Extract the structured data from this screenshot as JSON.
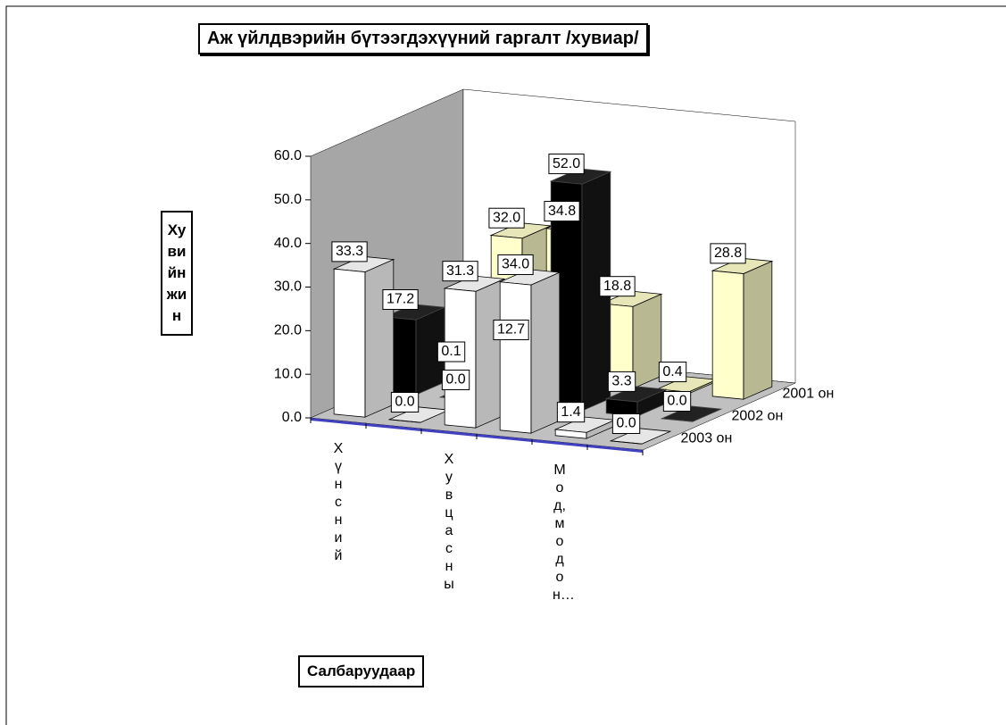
{
  "chart_data": {
    "type": "bar",
    "title": "Аж үйлдвэрийн бүтээгдэхүүний гаргалт /хувиар/",
    "x_label": "Салбаруудаар",
    "y_label": "Хувийн жин",
    "categories": [
      "Хүнсний",
      null,
      "Хувцасны",
      null,
      "Мод, модон…",
      null
    ],
    "series": [
      {
        "name": "2001 он",
        "color": "#ffffcc",
        "values": [
          0.1,
          32.0,
          34.8,
          18.8,
          0.4,
          28.8
        ],
        "value_labels": [
          "0.1",
          "32.0",
          "34.8",
          "18.8",
          "0.4",
          "28.8"
        ]
      },
      {
        "name": "2002 он",
        "color": "#000000",
        "values": [
          17.2,
          0.0,
          12.7,
          52.0,
          3.3,
          0.0
        ],
        "value_labels": [
          "17.2",
          "0.0",
          "12.7",
          "52.0",
          "3.3",
          "0.0"
        ]
      },
      {
        "name": "2003 он",
        "color": "#ffffff",
        "values": [
          33.3,
          0.0,
          31.3,
          34.0,
          1.4,
          0.0
        ],
        "value_labels": [
          "33.3",
          "0.0",
          "31.3",
          "34.0",
          "1.4",
          "0.0"
        ]
      }
    ],
    "ylim": [
      0,
      60
    ],
    "yticks": [
      {
        "value": 0,
        "label": "0.0"
      },
      {
        "value": 10,
        "label": "10.0"
      },
      {
        "value": 20,
        "label": "20.0"
      },
      {
        "value": 30,
        "label": "30.0"
      },
      {
        "value": 40,
        "label": "40.0"
      },
      {
        "value": 50,
        "label": "50.0"
      },
      {
        "value": 60,
        "label": "60.0"
      }
    ],
    "grid": false
  }
}
